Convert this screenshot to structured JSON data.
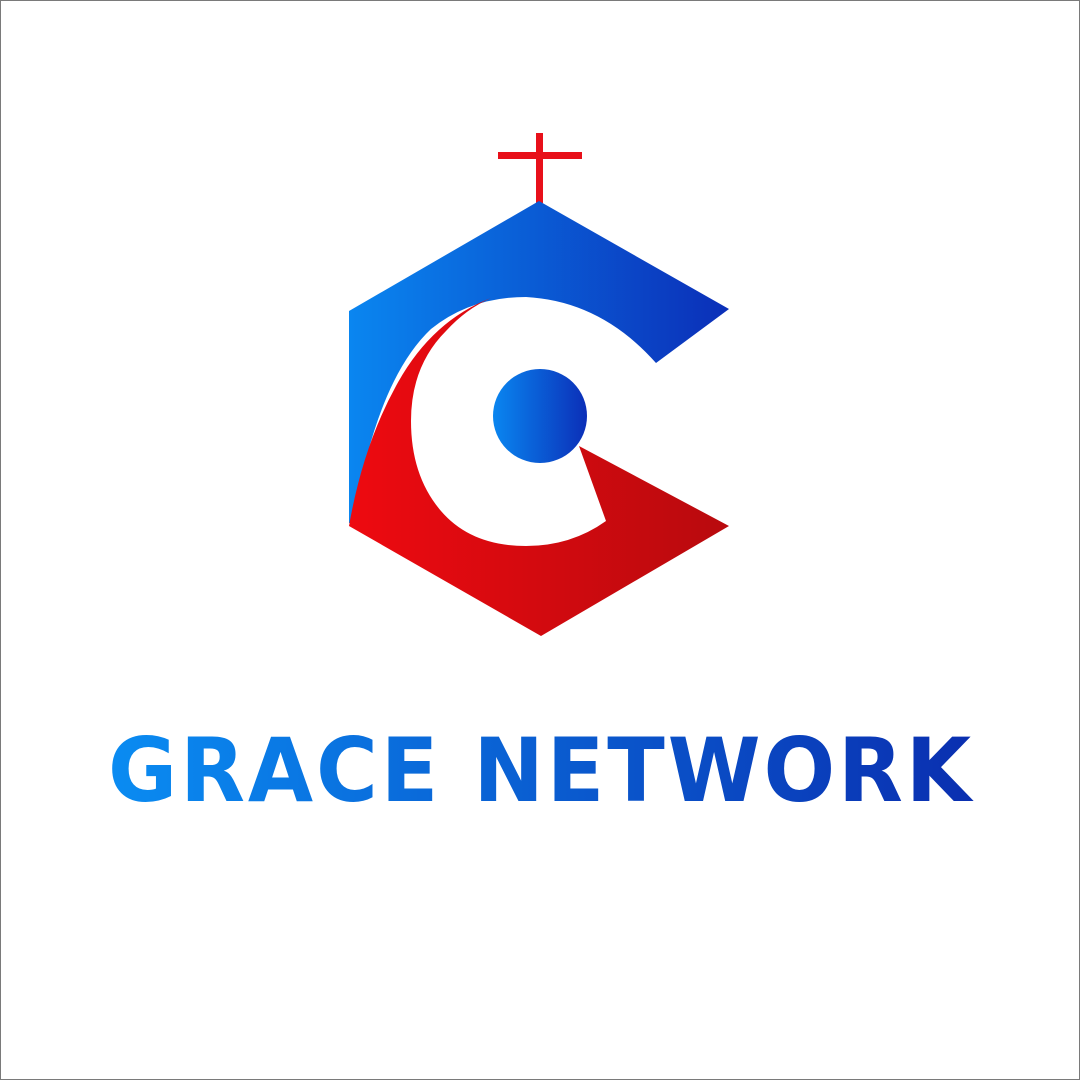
{
  "logo": {
    "wordmark": "GRACE NETWORK",
    "icons": [
      "cross-icon",
      "church-hexagon-icon",
      "letter-g-icon",
      "dot-icon"
    ]
  },
  "colors": {
    "cross": "#e8101a",
    "blue_light": "#0a86f0",
    "blue_dark": "#0b2fb8",
    "red_light": "#ee0a10",
    "red_dark": "#b80a0e",
    "background": "#ffffff",
    "border": "#7a7a7a"
  }
}
